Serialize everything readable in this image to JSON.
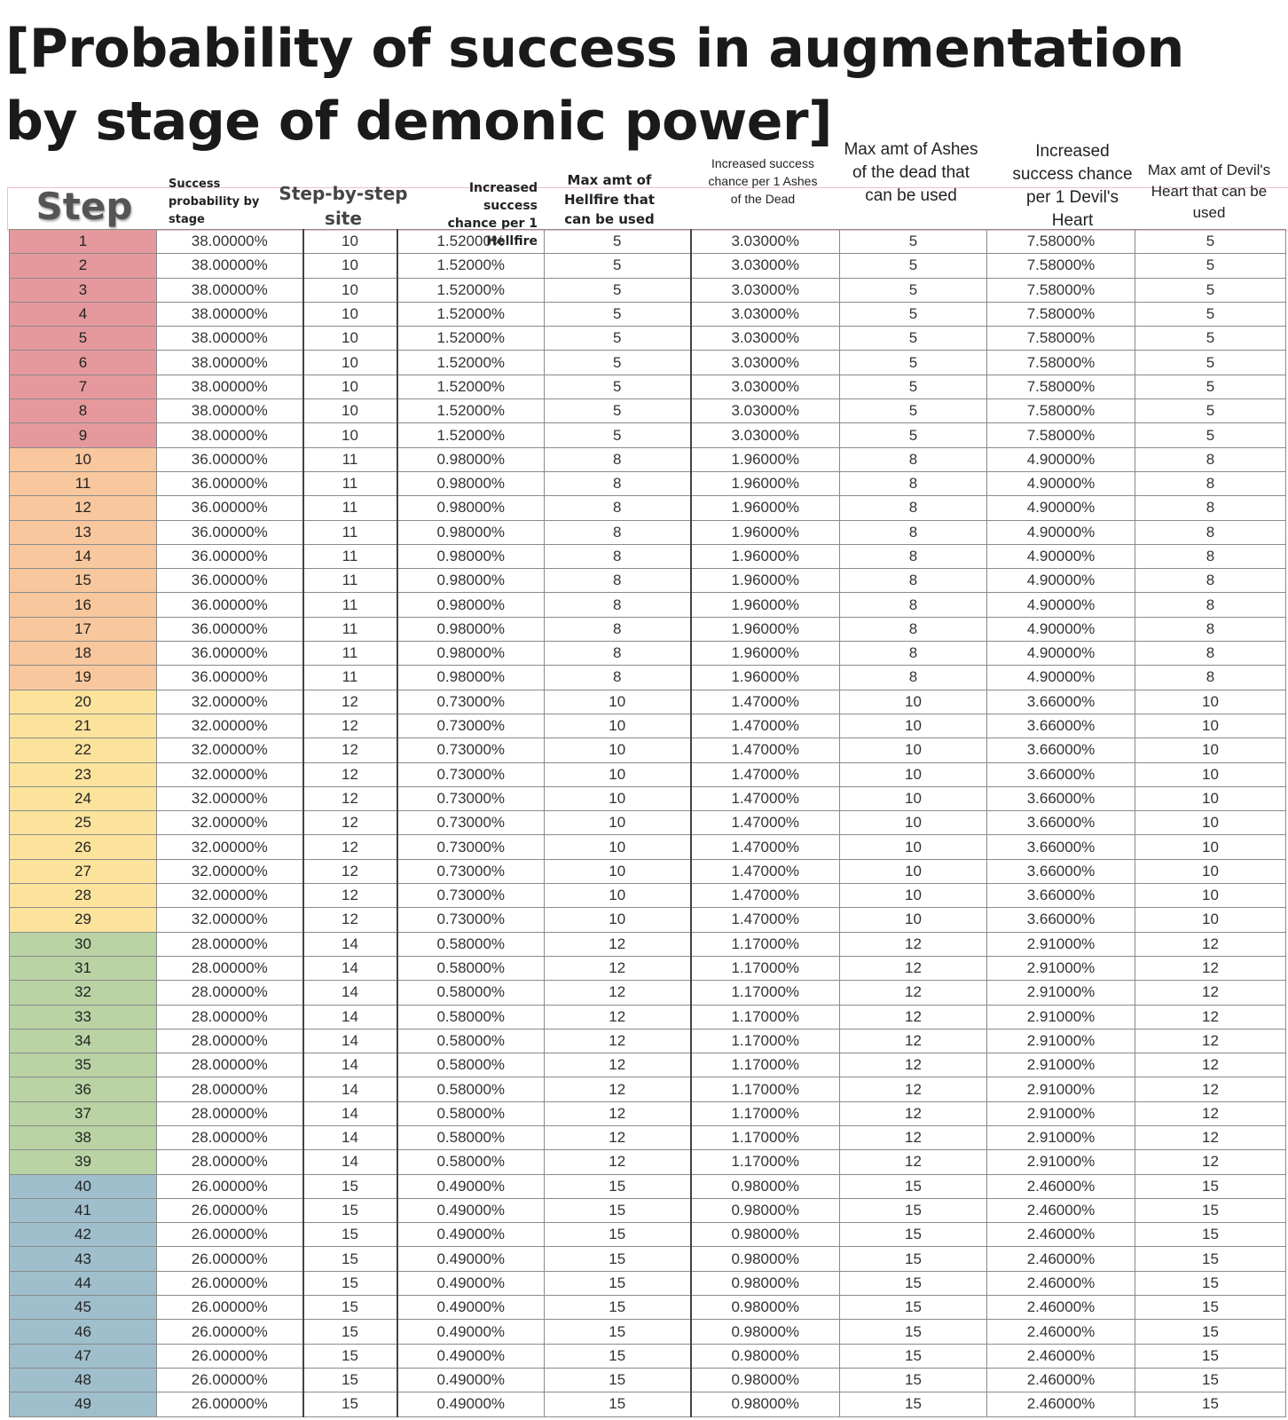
{
  "title": "[Probability of success in augmentation by stage of demonic power]",
  "colors": {
    "band_red": "#e5999c",
    "band_orange": "#f8c79d",
    "band_yellow": "#fce39c",
    "band_green": "#b9d3a4",
    "band_blue": "#9fbfcc"
  },
  "headers": {
    "step": "Step",
    "success_prob": "Success probability by stage",
    "step_site": "Step-by-step site",
    "hellfire_inc": "Increased success chance per 1 Hellfire",
    "hellfire_max": "Max amt of Hellfire that can be used",
    "ashes_inc": "Increased success chance per 1 Ashes of the Dead",
    "ashes_max": "Max amt of Ashes of the dead that can be used",
    "heart_inc": "Increased success chance per 1 Devil's Heart",
    "heart_max": "Max amt of Devil's Heart that can be used"
  },
  "tiers": [
    {
      "band": "red",
      "steps": [
        1,
        2,
        3,
        4,
        5,
        6,
        7,
        8,
        9
      ],
      "success": "38.00000%",
      "site": "10",
      "hellfire_inc": "1.52000%",
      "hellfire_max": "5",
      "ashes_inc": "3.03000%",
      "ashes_max": "5",
      "heart_inc": "7.58000%",
      "heart_max": "5"
    },
    {
      "band": "orange",
      "steps": [
        10,
        11,
        12,
        13,
        14,
        15,
        16,
        17,
        18,
        19
      ],
      "success": "36.00000%",
      "site": "11",
      "hellfire_inc": "0.98000%",
      "hellfire_max": "8",
      "ashes_inc": "1.96000%",
      "ashes_max": "8",
      "heart_inc": "4.90000%",
      "heart_max": "8"
    },
    {
      "band": "yellow",
      "steps": [
        20,
        21,
        22,
        23,
        24,
        25,
        26,
        27,
        28,
        29
      ],
      "success": "32.00000%",
      "site": "12",
      "hellfire_inc": "0.73000%",
      "hellfire_max": "10",
      "ashes_inc": "1.47000%",
      "ashes_max": "10",
      "heart_inc": "3.66000%",
      "heart_max": "10"
    },
    {
      "band": "green",
      "steps": [
        30,
        31,
        32,
        33,
        34,
        35,
        36,
        37,
        38,
        39
      ],
      "success": "28.00000%",
      "site": "14",
      "hellfire_inc": "0.58000%",
      "hellfire_max": "12",
      "ashes_inc": "1.17000%",
      "ashes_max": "12",
      "heart_inc": "2.91000%",
      "heart_max": "12"
    },
    {
      "band": "blue",
      "steps": [
        40,
        41,
        42,
        43,
        44,
        45,
        46,
        47,
        48,
        49
      ],
      "success": "26.00000%",
      "site": "15",
      "hellfire_inc": "0.49000%",
      "hellfire_max": "15",
      "ashes_inc": "0.98000%",
      "ashes_max": "15",
      "heart_inc": "2.46000%",
      "heart_max": "15"
    }
  ]
}
